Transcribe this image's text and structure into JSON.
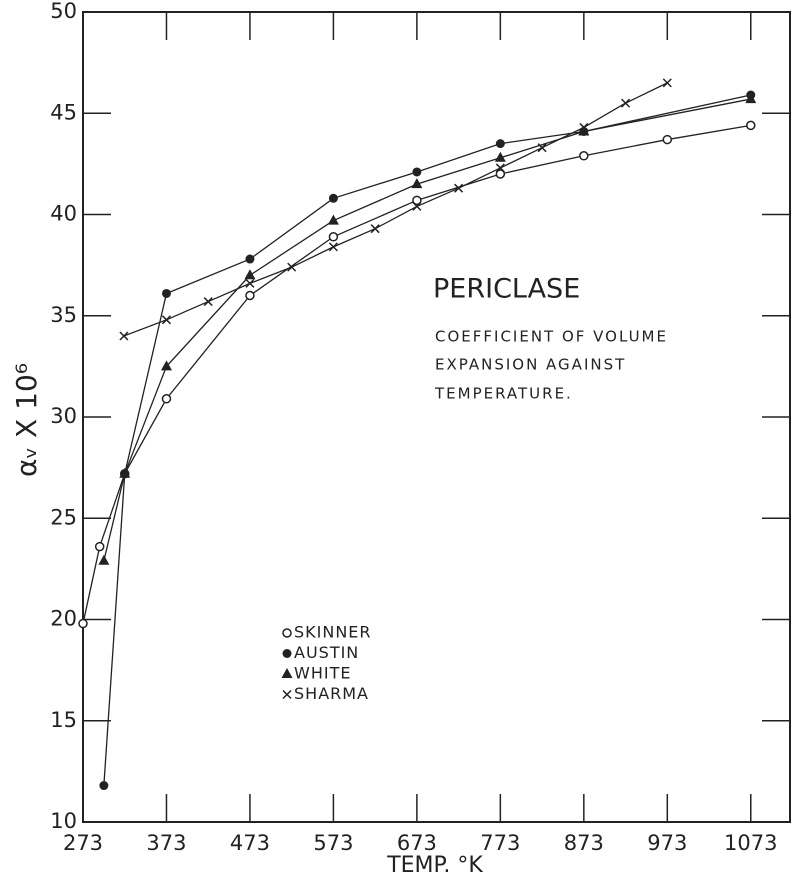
{
  "chart_data": {
    "type": "scatter",
    "title": "PERICLASE",
    "subtitle": [
      "COEFFICIENT OF VOLUME",
      "EXPANSION AGAINST",
      "TEMPERATURE."
    ],
    "xlabel": "TEMP. °K",
    "ylabel": "αᵥ X 10⁶",
    "xlim": [
      273,
      1120
    ],
    "ylim": [
      10,
      50
    ],
    "xticks": [
      273,
      373,
      473,
      573,
      673,
      773,
      873,
      973,
      1073
    ],
    "yticks": [
      10,
      15,
      20,
      25,
      30,
      35,
      40,
      45,
      50
    ],
    "series": [
      {
        "name": "SKINNER",
        "marker": "open-circle",
        "color": "#222",
        "x": [
          273,
          293,
          323,
          373,
          473,
          573,
          673,
          773,
          873,
          973,
          1073
        ],
        "values": [
          19.8,
          23.6,
          27.2,
          30.9,
          36.0,
          38.9,
          40.7,
          42.0,
          42.9,
          43.7,
          44.4
        ]
      },
      {
        "name": "AUSTIN",
        "marker": "filled-circle",
        "color": "#222",
        "x": [
          298,
          323,
          373,
          473,
          573,
          673,
          773,
          873,
          1073
        ],
        "values": [
          11.8,
          27.2,
          36.1,
          37.8,
          40.8,
          42.1,
          43.5,
          44.1,
          45.9
        ]
      },
      {
        "name": "WHITE",
        "marker": "triangle",
        "color": "#222",
        "x": [
          298,
          323,
          373,
          473,
          573,
          673,
          773,
          873,
          1073
        ],
        "values": [
          22.9,
          27.2,
          32.5,
          37.0,
          39.7,
          41.5,
          42.8,
          44.1,
          45.7
        ]
      },
      {
        "name": "SHARMA",
        "marker": "cross",
        "color": "#222",
        "x": [
          322,
          373,
          423,
          473,
          523,
          573,
          623,
          673,
          723,
          773,
          823,
          873,
          923,
          973
        ],
        "values": [
          34.0,
          34.8,
          35.7,
          36.6,
          37.4,
          38.4,
          39.3,
          40.4,
          41.3,
          42.3,
          43.3,
          44.3,
          45.5,
          46.5
        ]
      }
    ]
  }
}
